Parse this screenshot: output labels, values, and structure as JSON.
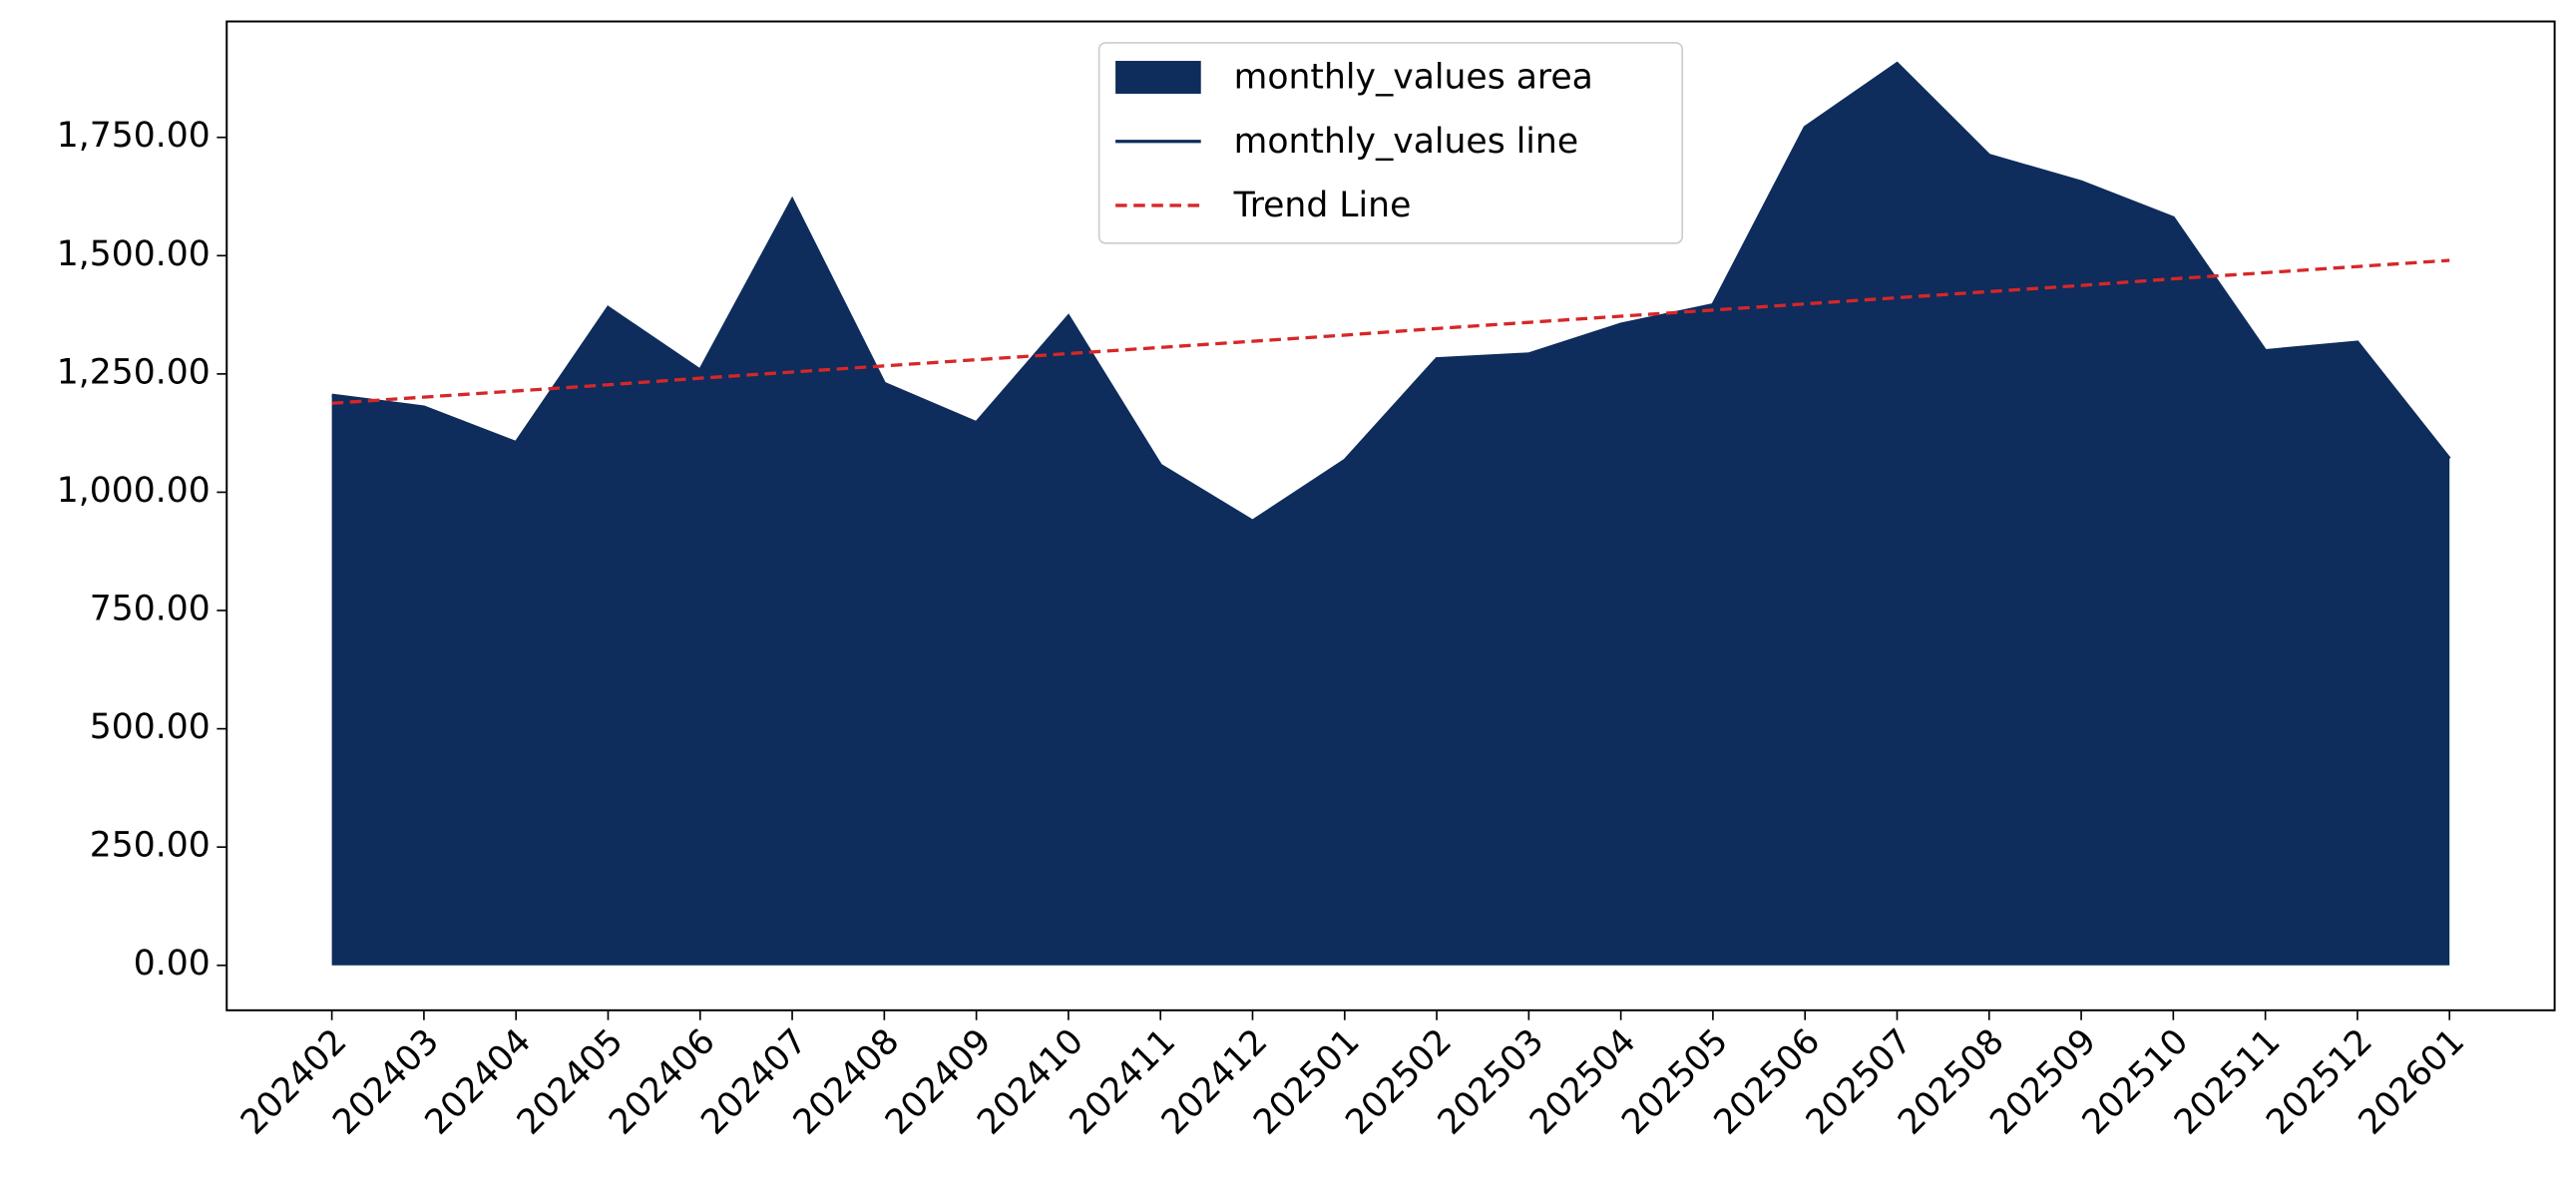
{
  "chart_data": {
    "type": "area",
    "categories": [
      "202402",
      "202403",
      "202404",
      "202405",
      "202406",
      "202407",
      "202408",
      "202409",
      "202410",
      "202411",
      "202412",
      "202501",
      "202502",
      "202503",
      "202504",
      "202505",
      "202506",
      "202507",
      "202508",
      "202509",
      "202510",
      "202511",
      "202512",
      "202601"
    ],
    "series": [
      {
        "name": "monthly_values area",
        "kind": "area",
        "color": "#0e2c5c",
        "values": [
          1205,
          1180,
          1105,
          1390,
          1258,
          1618,
          1230,
          1147,
          1372,
          1057,
          939,
          1067,
          1282,
          1292,
          1355,
          1396,
          1771,
          1906,
          1712,
          1656,
          1580,
          1299,
          1317,
          1071
        ]
      },
      {
        "name": "monthly_values line",
        "kind": "line",
        "color": "#0e2c5c",
        "values": [
          1205,
          1180,
          1105,
          1390,
          1258,
          1618,
          1230,
          1147,
          1372,
          1057,
          939,
          1067,
          1282,
          1292,
          1355,
          1396,
          1771,
          1906,
          1712,
          1656,
          1580,
          1299,
          1317,
          1071
        ]
      },
      {
        "name": "Trend Line",
        "kind": "dashed",
        "color": "#d62728",
        "values": [
          1188,
          1201,
          1214,
          1227,
          1241,
          1254,
          1267,
          1280,
          1293,
          1306,
          1319,
          1332,
          1346,
          1359,
          1372,
          1385,
          1398,
          1411,
          1424,
          1437,
          1451,
          1464,
          1477,
          1490
        ]
      }
    ],
    "ylim": [
      -95,
      1995
    ],
    "yticks": [
      {
        "value": 0,
        "label": "0.00"
      },
      {
        "value": 250,
        "label": "250.00"
      },
      {
        "value": 500,
        "label": "500.00"
      },
      {
        "value": 750,
        "label": "750.00"
      },
      {
        "value": 1000,
        "label": "1,000.00"
      },
      {
        "value": 1250,
        "label": "1,250.00"
      },
      {
        "value": 1500,
        "label": "1,500.00"
      },
      {
        "value": 1750,
        "label": "1,750.00"
      }
    ],
    "legend": "upper center"
  }
}
